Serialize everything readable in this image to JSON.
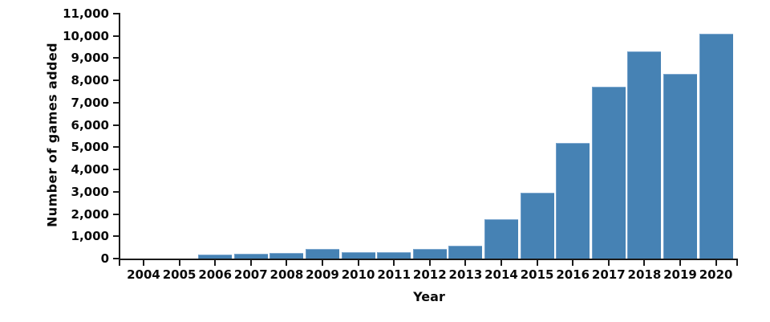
{
  "chart_data": {
    "type": "bar",
    "title": "",
    "xlabel": "Year",
    "ylabel": "Number of games added",
    "categories": [
      "2004",
      "2005",
      "2006",
      "2007",
      "2008",
      "2009",
      "2010",
      "2011",
      "2012",
      "2013",
      "2014",
      "2015",
      "2016",
      "2017",
      "2018",
      "2019",
      "2020"
    ],
    "values": [
      0,
      0,
      170,
      200,
      250,
      440,
      300,
      280,
      420,
      590,
      1750,
      2950,
      5200,
      7700,
      9300,
      8300,
      10100
    ],
    "ylim": [
      0,
      11000
    ],
    "ytick_interval": 1000,
    "ytick_labels": [
      "0",
      "1,000",
      "2,000",
      "3,000",
      "4,000",
      "5,000",
      "6,000",
      "7,000",
      "8,000",
      "9,000",
      "10,000",
      "11,000"
    ],
    "grid": false,
    "legend": "none",
    "colors": {
      "bar_fill": "#4682b4",
      "bar_highlight": "#7fa9d0",
      "axis": "#1a1a1a",
      "text": "#0a0a0a",
      "background": "#ffffff"
    }
  }
}
